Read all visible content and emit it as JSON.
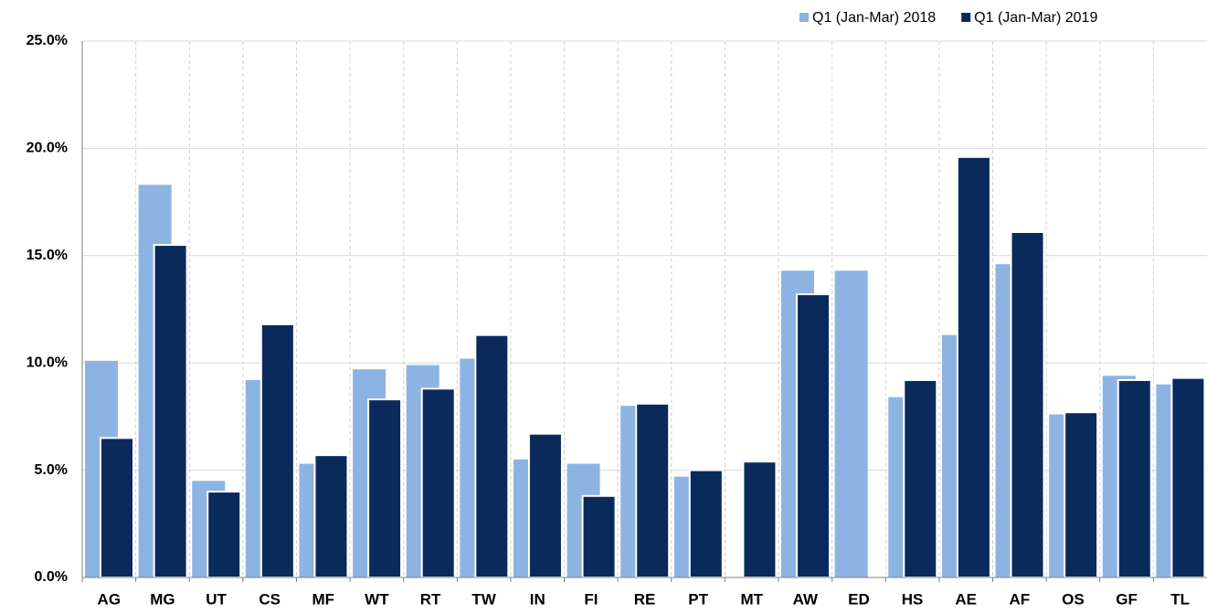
{
  "chart_data": {
    "type": "bar",
    "categories": [
      "AG",
      "MG",
      "UT",
      "CS",
      "MF",
      "WT",
      "RT",
      "TW",
      "IN",
      "FI",
      "RE",
      "PT",
      "MT",
      "AW",
      "ED",
      "HS",
      "AE",
      "AF",
      "OS",
      "GF",
      "TL"
    ],
    "series": [
      {
        "name": "Q1 (Jan-Mar) 2018",
        "color": "#8db3e2",
        "values": [
          10.1,
          18.3,
          4.5,
          9.2,
          5.3,
          9.7,
          9.9,
          10.2,
          5.5,
          5.3,
          8.0,
          4.7,
          null,
          14.3,
          14.3,
          8.4,
          11.3,
          14.6,
          7.6,
          9.4,
          9.0
        ]
      },
      {
        "name": "Q1 (Jan-Mar) 2019",
        "color": "#0b2a5c",
        "values": [
          6.5,
          15.5,
          4.0,
          11.8,
          5.7,
          8.3,
          8.8,
          11.3,
          6.7,
          3.8,
          8.1,
          5.0,
          5.4,
          13.2,
          null,
          9.2,
          19.6,
          16.1,
          7.7,
          9.2,
          9.3
        ]
      }
    ],
    "ylim": [
      0,
      25
    ],
    "yticks": [
      {
        "value": 0,
        "label": "0.0%"
      },
      {
        "value": 5,
        "label": "5.0%"
      },
      {
        "value": 10,
        "label": "10.0%"
      },
      {
        "value": 15,
        "label": "15.0%"
      },
      {
        "value": 20,
        "label": "20.0%"
      },
      {
        "value": 25,
        "label": "25.0%"
      }
    ],
    "grid": true,
    "legend": "top-right"
  }
}
